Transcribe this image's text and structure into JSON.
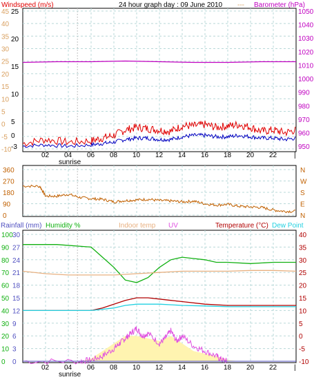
{
  "header": {
    "windspeed_label": "Windspeed (m/s)",
    "title": "24 hour graph day : 09 June 2010",
    "barometer_label": "Barometer (hPa)"
  },
  "x_ticks": [
    "02",
    "04",
    "06",
    "08",
    "10",
    "12",
    "14",
    "16",
    "18",
    "20",
    "22"
  ],
  "sunrise_label": "sunrise",
  "colors": {
    "frame": "#000000",
    "grid": "#b8d8d8",
    "wind_axis": "#d9a060",
    "wind_gust": "#e00000",
    "wind_avg": "#0000c0",
    "barometer": "#c000c0",
    "wind_dir": "#c06000",
    "rain_axis": "#5050c0",
    "humidity": "#10b010",
    "indoor": "#e8b080",
    "uv": "#e050e0",
    "temperature": "#b00000",
    "dew": "#20d0e0",
    "solar_fill": "#fff4b0"
  },
  "chart_data": [
    {
      "type": "line",
      "panel": "wind_barometer",
      "x_range": [
        0,
        24
      ],
      "left_axis_outer_ticks": [
        "45",
        "40",
        "35",
        "30",
        "25",
        "20",
        "15",
        "10",
        "5",
        "0",
        "-5",
        "-10"
      ],
      "left_axis_inner_ticks": [
        "25",
        "20",
        "15",
        "10",
        "5",
        "0",
        "-3"
      ],
      "right_axis_ticks": [
        "1050",
        "1040",
        "1030",
        "1020",
        "1010",
        "1000",
        "990",
        "980",
        "970",
        "960",
        "950"
      ],
      "ylim_barometer": [
        948,
        1050
      ],
      "series": [
        {
          "name": "Barometer",
          "color_key": "barometer",
          "x": [
            0,
            3,
            6,
            9,
            12,
            15,
            18,
            21,
            24
          ],
          "values": [
            1012,
            1012.5,
            1012.5,
            1013,
            1012.5,
            1012,
            1012,
            1012.5,
            1012.5
          ]
        },
        {
          "name": "Windspeed",
          "color_key": "wind_gust",
          "x": [
            0,
            2,
            4,
            6,
            7,
            8,
            9,
            10,
            11,
            12,
            13,
            14,
            15,
            16,
            17,
            18,
            19,
            20,
            21,
            22,
            23,
            24
          ],
          "values": [
            952,
            955,
            953,
            954,
            956,
            958,
            962,
            964,
            963,
            962,
            961,
            965,
            965,
            966,
            964,
            965,
            966,
            964,
            961,
            962,
            960,
            962
          ]
        },
        {
          "name": "Windspeed avg",
          "color_key": "wind_avg",
          "x": [
            0,
            2,
            4,
            6,
            7,
            8,
            9,
            10,
            11,
            12,
            13,
            14,
            15,
            16,
            17,
            18,
            19,
            20,
            21,
            22,
            23,
            24
          ],
          "values": [
            950,
            951,
            950,
            951,
            952,
            953,
            955,
            956,
            956,
            955,
            955,
            957,
            958,
            958,
            957,
            957,
            958,
            957,
            956,
            956,
            955,
            956
          ]
        }
      ]
    },
    {
      "type": "line",
      "panel": "wind_direction",
      "x_range": [
        0,
        24
      ],
      "left_axis_ticks": [
        "360",
        "270",
        "180",
        "90",
        "0"
      ],
      "right_axis_ticks": [
        "N",
        "W",
        "S",
        "E",
        "N"
      ],
      "ylim": [
        0,
        360
      ],
      "series": [
        {
          "name": "Wind direction",
          "color_key": "wind_dir",
          "x": [
            0,
            1.5,
            2,
            3,
            4,
            5,
            6,
            7,
            8,
            9,
            10,
            11,
            12,
            13,
            14,
            15,
            16,
            17,
            18,
            19,
            20,
            21,
            22,
            23,
            24
          ],
          "values": [
            230,
            228,
            150,
            150,
            165,
            140,
            130,
            125,
            105,
            115,
            120,
            125,
            115,
            112,
            105,
            110,
            90,
            80,
            85,
            70,
            65,
            60,
            40,
            30,
            30
          ]
        }
      ]
    },
    {
      "type": "line",
      "panel": "rain_humidity_temperature",
      "labels": {
        "rainfall": "Rainfall (mm)",
        "humidity": "Humidity %",
        "indoor": "Indoor temp",
        "uv": "UV",
        "temperature": "Temperature (°C)",
        "dew": "Dew Point"
      },
      "left_axis_outer_ticks": [
        "100",
        "90",
        "80",
        "70",
        "60",
        "50",
        "40",
        "30",
        "20",
        "10",
        "0"
      ],
      "left_axis_inner_ticks": [
        "30",
        "27",
        "24",
        "21",
        "18",
        "15",
        "12",
        "9",
        "6",
        "3",
        "0"
      ],
      "right_axis_ticks": [
        "40",
        "35",
        "30",
        "25",
        "20",
        "15",
        "10",
        "5",
        "0",
        "-5",
        "-10"
      ],
      "ylim_temperature": [
        -10,
        40
      ],
      "series": [
        {
          "name": "Humidity %",
          "color_key": "humidity",
          "x": [
            0,
            3,
            6,
            7,
            8,
            9,
            10,
            11,
            12,
            13,
            14,
            15,
            16,
            17,
            18,
            20,
            22,
            24
          ],
          "values": [
            36,
            36,
            35,
            31,
            27,
            22,
            21,
            23,
            27,
            30,
            31,
            30.5,
            30,
            29,
            29,
            28.5,
            29,
            29
          ]
        },
        {
          "name": "Indoor temp",
          "color_key": "indoor",
          "x": [
            0,
            2,
            4,
            6,
            8,
            10,
            12,
            14,
            16,
            18,
            20,
            22,
            24
          ],
          "values": [
            25.5,
            24.5,
            24,
            24,
            24,
            24.5,
            25,
            25.5,
            25.5,
            25.5,
            25.8,
            25.8,
            25.5
          ]
        },
        {
          "name": "Temperature (°C)",
          "color_key": "temperature",
          "x": [
            0,
            3,
            5,
            6,
            7,
            8,
            9,
            10,
            11,
            12,
            13,
            14,
            16,
            18,
            20,
            22,
            24
          ],
          "values": [
            10,
            10,
            10,
            10,
            11,
            12.5,
            14,
            15,
            15,
            14.5,
            14,
            13.5,
            12.5,
            12,
            12,
            12,
            12
          ]
        },
        {
          "name": "Dew Point",
          "color_key": "dew",
          "x": [
            0,
            3,
            6,
            7,
            8,
            9,
            10,
            12,
            14,
            16,
            18,
            20,
            22,
            24
          ],
          "values": [
            10,
            10,
            10,
            10.5,
            11,
            12,
            12.5,
            12.5,
            12,
            11.8,
            11.5,
            11.5,
            11.5,
            11.5
          ]
        },
        {
          "name": "UV",
          "color_key": "uv",
          "x": [
            0,
            5,
            6,
            7,
            8,
            8.5,
            9,
            9.5,
            10,
            10.5,
            11,
            12,
            12.5,
            13,
            13.5,
            14,
            15,
            16,
            17,
            17.5,
            18
          ],
          "values": [
            -10,
            -10,
            -9.5,
            -8,
            -5,
            -3,
            -1,
            1,
            3,
            0,
            1,
            -3,
            -1,
            2,
            -2,
            0,
            -4,
            -6,
            -8,
            -9.5,
            -10
          ]
        },
        {
          "name": "Solar",
          "color_key": "solar_fill",
          "x": [
            0,
            5,
            6,
            7,
            8,
            9,
            10,
            11,
            12,
            13,
            14,
            15,
            16,
            17,
            18,
            19,
            24
          ],
          "values": [
            -10,
            -10,
            -9,
            -6,
            -3,
            0,
            0,
            -1,
            -2,
            0,
            -3,
            -6,
            -7,
            -8,
            -9.5,
            -10,
            -10
          ]
        },
        {
          "name": "Rainfall (mm)",
          "color_key": "rain_axis",
          "x": [
            0,
            24
          ],
          "values": [
            0,
            0
          ]
        }
      ]
    }
  ]
}
